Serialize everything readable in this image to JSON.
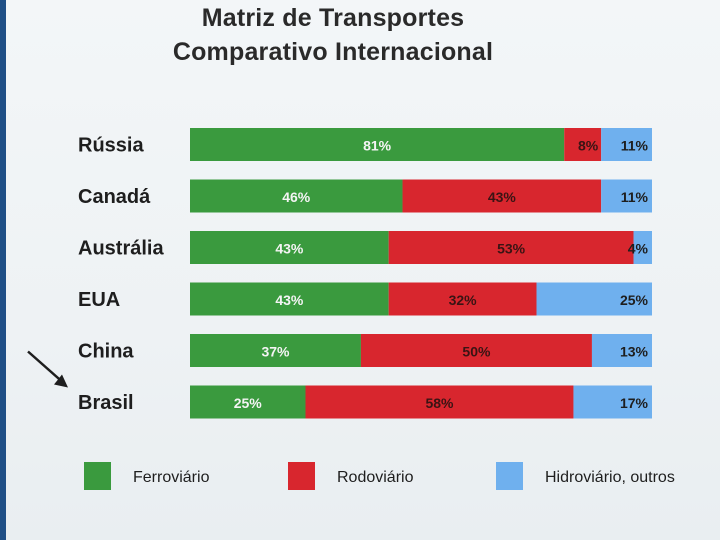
{
  "chart_data": {
    "type": "bar",
    "orientation": "horizontal",
    "stacked": true,
    "title": "Matriz de Transportes",
    "subtitle": "Comparativo Internacional",
    "categories": [
      "Rússia",
      "Canadá",
      "Austrália",
      "EUA",
      "China",
      "Brasil"
    ],
    "series": [
      {
        "name": "Ferroviário",
        "color": "#3a9a3e",
        "values": [
          81,
          46,
          43,
          43,
          37,
          25
        ],
        "labels": [
          "81%",
          "46%",
          "43%",
          "43%",
          "37%",
          "25%"
        ]
      },
      {
        "name": "Rodoviário",
        "color": "#d8262e",
        "values": [
          8,
          43,
          53,
          32,
          50,
          58
        ],
        "labels": [
          "8%",
          "43%",
          "53%",
          "32%",
          "50%",
          "58%"
        ]
      },
      {
        "name": "Hidroviário, outros",
        "color": "#6fb0ee",
        "values": [
          11,
          11,
          4,
          25,
          13,
          17
        ],
        "labels": [
          "11%",
          "11%",
          "4%",
          "25%",
          "13%",
          "17%"
        ]
      }
    ],
    "xlim": [
      0,
      100
    ],
    "highlight": "Brasil",
    "legend": "bottom"
  }
}
